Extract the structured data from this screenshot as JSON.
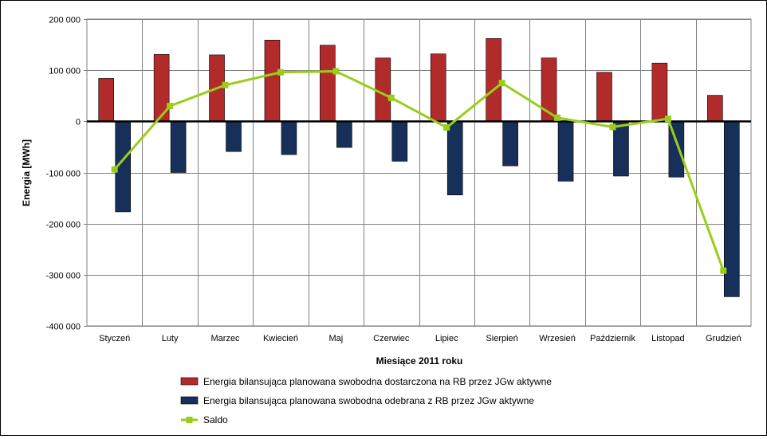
{
  "chart_data": {
    "type": "bar",
    "title": "",
    "xlabel": "Miesiące 2011  roku",
    "ylabel": "Energia [MWh]",
    "ylim": [
      -400000,
      200000
    ],
    "yticks": [
      200000,
      100000,
      0,
      -100000,
      -200000,
      -300000,
      -400000
    ],
    "ytick_labels": [
      "200 000",
      "100 000",
      "0",
      "-100 000",
      "-200 000",
      "-300 000",
      "-400 000"
    ],
    "grid": true,
    "legend_position": "bottom",
    "categories": [
      "Styczeń",
      "Luty",
      "Marzec",
      "Kwiecień",
      "Maj",
      "Czerwiec",
      "Lipiec",
      "Sierpień",
      "Wrzesień",
      "Październik",
      "Listopad",
      "Grudzień"
    ],
    "series": [
      {
        "name": "Energia bilansująca planowana swobodna dostarczona na RB przez JGw aktywne",
        "type": "bar",
        "color": "#b22b2b",
        "values": [
          84000,
          131000,
          130000,
          159000,
          149000,
          124000,
          132000,
          162000,
          124000,
          96000,
          114000,
          51000
        ]
      },
      {
        "name": "Energia bilansująca planowana swobodna odebrana z RB przez JGw aktywne",
        "type": "bar",
        "color": "#17305a",
        "values": [
          -177000,
          -100000,
          -59000,
          -65000,
          -51000,
          -78000,
          -144000,
          -87000,
          -117000,
          -107000,
          -109000,
          -343000
        ]
      },
      {
        "name": "Saldo",
        "type": "line",
        "color": "#9acd1a",
        "values": [
          -94000,
          30000,
          71000,
          96000,
          98000,
          46000,
          -12000,
          75000,
          7000,
          -11000,
          5000,
          -292000
        ]
      }
    ]
  }
}
